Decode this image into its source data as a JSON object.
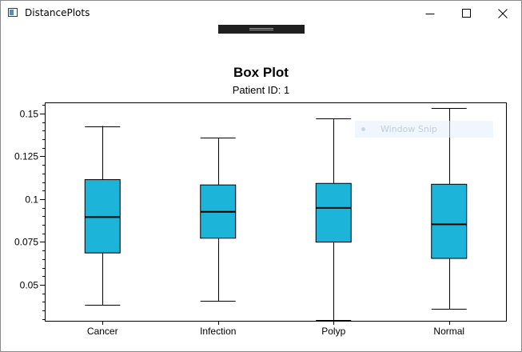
{
  "window": {
    "title": "DistancePlots"
  },
  "overlay": {
    "label": "Window Snip"
  },
  "chart_data": {
    "type": "box",
    "title": "Box Plot",
    "subtitle": "Patient ID: 1",
    "xlabel": "",
    "ylabel": "",
    "categories": [
      "Cancer",
      "Infection",
      "Polyp",
      "Normal"
    ],
    "ylim": [
      0.0285,
      0.1565
    ],
    "yticks": [
      0.05,
      0.075,
      0.1,
      0.125,
      0.15
    ],
    "ytick_labels": [
      "0.05",
      "0.075",
      "0.1",
      "0.125",
      "0.15"
    ],
    "boxes": [
      {
        "category": "Cancer",
        "min": 0.0381,
        "q1": 0.0686,
        "median": 0.0895,
        "q3": 0.1114,
        "max": 0.1427
      },
      {
        "category": "Infection",
        "min": 0.0406,
        "q1": 0.0772,
        "median": 0.0926,
        "q3": 0.1083,
        "max": 0.1358
      },
      {
        "category": "Polyp",
        "min": 0.0295,
        "q1": 0.0749,
        "median": 0.0949,
        "q3": 0.1092,
        "max": 0.147
      },
      {
        "category": "Normal",
        "min": 0.036,
        "q1": 0.0654,
        "median": 0.0853,
        "q3": 0.1087,
        "max": 0.1531
      }
    ],
    "box_color": "#1cb4d8",
    "grid": false,
    "legend": "none"
  }
}
